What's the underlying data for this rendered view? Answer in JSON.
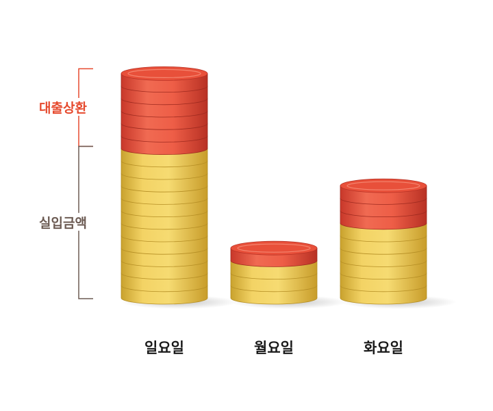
{
  "chart_data": {
    "type": "bar",
    "stacked": true,
    "categories": [
      "일요일",
      "월요일",
      "화요일"
    ],
    "series": [
      {
        "name": "실입금액",
        "values": [
          12,
          3,
          6
        ]
      },
      {
        "name": "대출상환",
        "values": [
          6,
          1,
          3
        ]
      }
    ],
    "bracket_labels": [
      "대출상환",
      "실입금액"
    ],
    "colors": {
      "loan_repayment": "#E8503A",
      "actual_deposit": "#EEC64A",
      "loan_label": "#E64A2E",
      "deposit_label": "#6B5A52"
    },
    "grid": false
  }
}
